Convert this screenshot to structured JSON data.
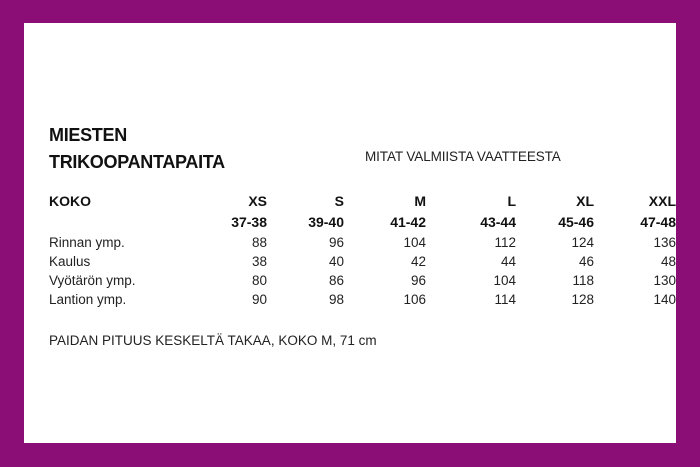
{
  "title_line1": "MIESTEN",
  "title_line2": "TRIKOOPANTAPAITA",
  "subtitle": "MITAT VALMIISTA VAATTEESTA",
  "table": {
    "header_label": "KOKO",
    "sizes": [
      "XS",
      "S",
      "M",
      "L",
      "XL",
      "XXL"
    ],
    "ranges": [
      "37-38",
      "39-40",
      "41-42",
      "43-44",
      "45-46",
      "47-48"
    ],
    "rows": [
      {
        "label": "Rinnan ymp.",
        "values": [
          "88",
          "96",
          "104",
          "112",
          "124",
          "136"
        ]
      },
      {
        "label": "Kaulus",
        "values": [
          "38",
          "40",
          "42",
          "44",
          "46",
          "48"
        ]
      },
      {
        "label": "Vyötärön ymp.",
        "values": [
          "80",
          "86",
          "96",
          "104",
          "118",
          "130"
        ]
      },
      {
        "label": "Lantion ymp.",
        "values": [
          "90",
          "98",
          "106",
          "114",
          "128",
          "140"
        ]
      }
    ]
  },
  "note": "PAIDAN PITUUS KESKELTÄ TAKAA, KOKO M, 71 cm",
  "colors": {
    "frame": "#8b0d76",
    "card": "#ffffff",
    "text": "#1c1c1c"
  }
}
